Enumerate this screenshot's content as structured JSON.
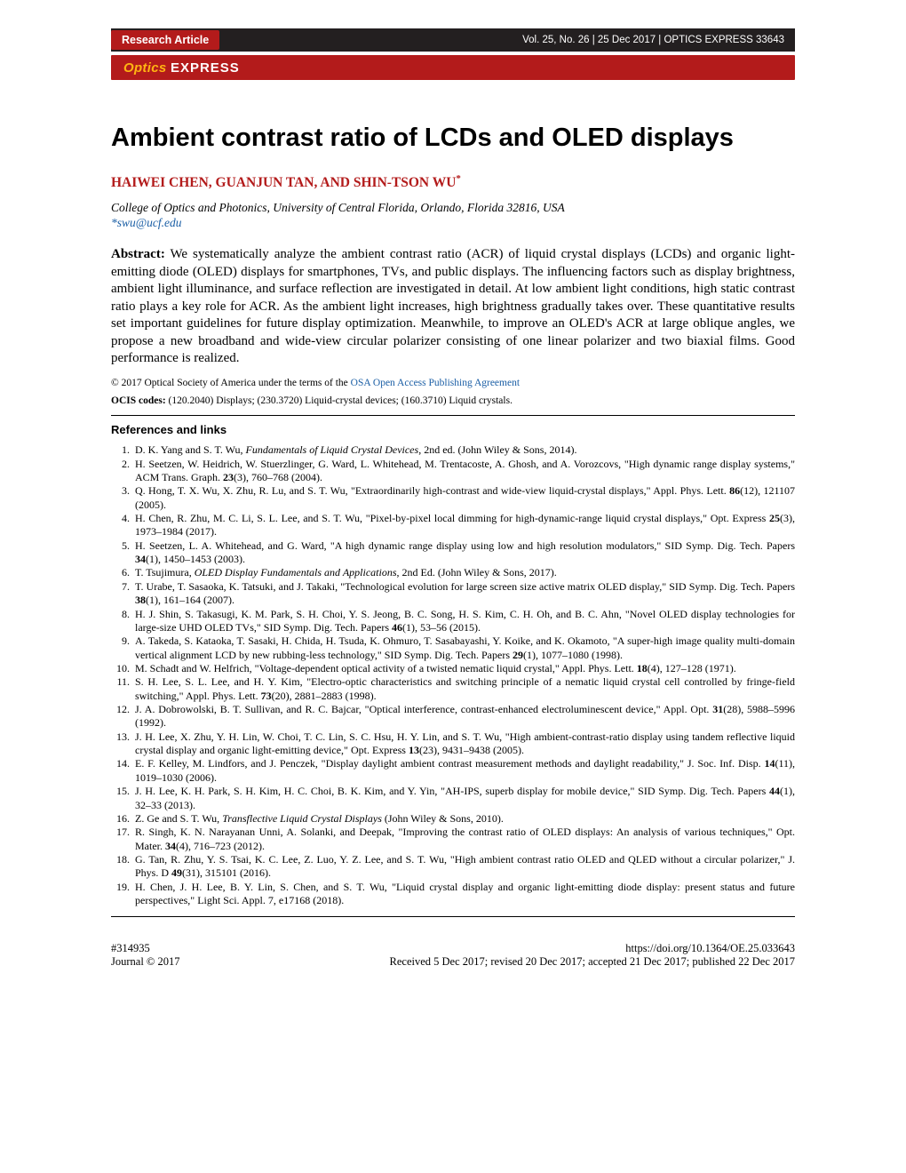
{
  "header": {
    "badge": "Research Article",
    "volumeInfo": "Vol. 25, No. 26 | 25 Dec 2017 | OPTICS EXPRESS 33643",
    "logoOptics": "Optics",
    "logoExpress": "EXPRESS"
  },
  "title": "Ambient contrast ratio of LCDs and OLED displays",
  "authors": "HAIWEI CHEN, GUANJUN TAN, AND SHIN-TSON WU",
  "authorSup": "*",
  "affiliation": "College of Optics and Photonics, University of Central Florida, Orlando, Florida 32816, USA",
  "email": "*swu@ucf.edu",
  "abstractLabel": "Abstract:",
  "abstract": "We systematically analyze the ambient contrast ratio (ACR) of liquid crystal displays (LCDs) and organic light-emitting diode (OLED) displays for smartphones, TVs, and public displays. The influencing factors such as display brightness, ambient light illuminance, and surface reflection are investigated in detail. At low ambient light conditions, high static contrast ratio plays a key role for ACR. As the ambient light increases, high brightness gradually takes over. These quantitative results set important guidelines for future display optimization. Meanwhile, to improve an OLED's ACR at large oblique angles, we propose a new broadband and wide-view circular polarizer consisting of one linear polarizer and two biaxial films. Good performance is realized.",
  "copyrightPrefix": "© 2017 Optical Society of America under the terms of the ",
  "copyrightLinkText": "OSA Open Access Publishing Agreement",
  "ocisLabel": "OCIS codes:",
  "ocis": "(120.2040) Displays; (230.3720) Liquid-crystal devices; (160.3710) Liquid crystals.",
  "refsHeading": "References and links",
  "references": [
    "D. K. Yang and S. T. Wu, <em>Fundamentals of Liquid Crystal Devices</em>, 2nd ed. (John Wiley & Sons, 2014).",
    "H. Seetzen, W. Heidrich, W. Stuerzlinger, G. Ward, L. Whitehead, M. Trentacoste, A. Ghosh, and A. Vorozcovs, \"High dynamic range display systems,\" ACM Trans. Graph. <strong>23</strong>(3), 760–768 (2004).",
    "Q. Hong, T. X. Wu, X. Zhu, R. Lu, and S. T. Wu, \"Extraordinarily high-contrast and wide-view liquid-crystal displays,\" Appl. Phys. Lett. <strong>86</strong>(12), 121107 (2005).",
    "H. Chen, R. Zhu, M. C. Li, S. L. Lee, and S. T. Wu, \"Pixel-by-pixel local dimming for high-dynamic-range liquid crystal displays,\" Opt. Express <strong>25</strong>(3), 1973–1984 (2017).",
    "H. Seetzen, L. A. Whitehead, and G. Ward, \"A high dynamic range display using low and high resolution modulators,\" SID Symp. Dig. Tech. Papers <strong>34</strong>(1), 1450–1453 (2003).",
    "T. Tsujimura, <em>OLED Display Fundamentals and Applications</em>, 2nd Ed. (John Wiley & Sons, 2017).",
    "T. Urabe, T. Sasaoka, K. Tatsuki, and J. Takaki, \"Technological evolution for large screen size active matrix OLED display,\" SID Symp. Dig. Tech. Papers <strong>38</strong>(1), 161–164 (2007).",
    "H. J. Shin, S. Takasugi, K. M. Park, S. H. Choi, Y. S. Jeong, B. C. Song, H. S. Kim, C. H. Oh, and B. C. Ahn, \"Novel OLED display technologies for large-size UHD OLED TVs,\" SID Symp. Dig. Tech. Papers <strong>46</strong>(1), 53–56 (2015).",
    "A. Takeda, S. Kataoka, T. Sasaki, H. Chida, H. Tsuda, K. Ohmuro, T. Sasabayashi, Y. Koike, and K. Okamoto, \"A super-high image quality multi-domain vertical alignment LCD by new rubbing-less technology,\" SID Symp. Dig. Tech. Papers <strong>29</strong>(1), 1077–1080 (1998).",
    "M. Schadt and W. Helfrich, \"Voltage-dependent optical activity of a twisted nematic liquid crystal,\" Appl. Phys. Lett. <strong>18</strong>(4), 127–128 (1971).",
    "S. H. Lee, S. L. Lee, and H. Y. Kim, \"Electro-optic characteristics and switching principle of a nematic liquid crystal cell controlled by fringe-field switching,\" Appl. Phys. Lett. <strong>73</strong>(20), 2881–2883 (1998).",
    "J. A. Dobrowolski, B. T. Sullivan, and R. C. Bajcar, \"Optical interference, contrast-enhanced electroluminescent device,\" Appl. Opt. <strong>31</strong>(28), 5988–5996 (1992).",
    "J. H. Lee, X. Zhu, Y. H. Lin, W. Choi, T. C. Lin, S. C. Hsu, H. Y. Lin, and S. T. Wu, \"High ambient-contrast-ratio display using tandem reflective liquid crystal display and organic light-emitting device,\" Opt. Express <strong>13</strong>(23), 9431–9438 (2005).",
    "E. F. Kelley, M. Lindfors, and J. Penczek, \"Display daylight ambient contrast measurement methods and daylight readability,\" J. Soc. Inf. Disp. <strong>14</strong>(11), 1019–1030 (2006).",
    "J. H. Lee, K. H. Park, S. H. Kim, H. C. Choi, B. K. Kim, and Y. Yin, \"AH-IPS, superb display for mobile device,\" SID Symp. Dig. Tech. Papers <strong>44</strong>(1), 32–33 (2013).",
    "Z. Ge and S. T. Wu, <em>Transflective Liquid Crystal Displays</em> (John Wiley & Sons, 2010).",
    "R. Singh, K. N. Narayanan Unni, A. Solanki, and Deepak, \"Improving the contrast ratio of OLED displays: An analysis of various techniques,\" Opt. Mater. <strong>34</strong>(4), 716–723 (2012).",
    "G. Tan, R. Zhu, Y. S. Tsai, K. C. Lee, Z. Luo, Y. Z. Lee, and S. T. Wu, \"High ambient contrast ratio OLED and QLED without a circular polarizer,\" J. Phys. D <strong>49</strong>(31), 315101 (2016).",
    "H. Chen, J. H. Lee, B. Y. Lin, S. Chen, and S. T. Wu, \"Liquid crystal display and organic light-emitting diode display: present status and future perspectives,\" Light Sci. Appl. 7, e17168 (2018)."
  ],
  "footer": {
    "manuscriptId": "#314935",
    "doi": "https://doi.org/10.1364/OE.25.033643",
    "journal": "Journal © 2017",
    "dates": "Received 5 Dec 2017; revised 20 Dec 2017; accepted 21 Dec 2017; published 22 Dec 2017"
  },
  "colors": {
    "brand_red": "#b31b1b",
    "link_blue": "#1a5ea5",
    "logo_yellow": "#ffb412",
    "bar_black": "#231f20",
    "background": "#ffffff",
    "text": "#000000"
  },
  "typography": {
    "title_fontsize": 29,
    "body_fontsize": 15,
    "refs_fontsize": 12,
    "footer_fontsize": 12.5
  }
}
